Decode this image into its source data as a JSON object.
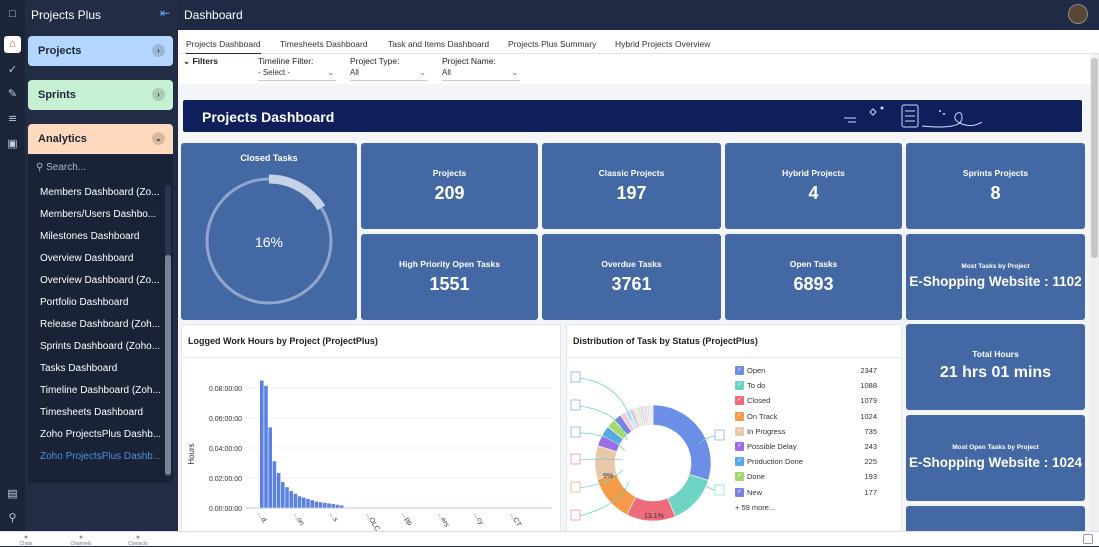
{
  "app": {
    "name": "Projects Plus",
    "header_title": "Dashboard"
  },
  "sidebar": {
    "projects_label": "Projects",
    "sprints_label": "Sprints",
    "analytics_label": "Analytics",
    "search_placeholder": "Search...",
    "dashboards": [
      "Members Dashboard (Zo...",
      "Members/Users Dashbo...",
      "Milestones Dashboard",
      "Overview Dashboard",
      "Overview Dashboard (Zo...",
      "Portfolio Dashboard",
      "Release Dashboard (Zoh...",
      "Sprints Dashboard (Zoho...",
      "Tasks Dashboard",
      "Timeline Dashboard (Zoh...",
      "Timesheets Dashboard",
      "Zoho ProjectsPlus Dashb...",
      "Zoho ProjectsPlus Dashb..."
    ]
  },
  "tabs": [
    "Projects Dashboard",
    "Timesheets Dashboard",
    "Task and Items Dashboard",
    "Projects Plus Summary",
    "Hybrid Projects Overview"
  ],
  "filters": {
    "toggle_label": "Filters",
    "timeline": {
      "label": "Timeline Filter:",
      "value": "- Select -"
    },
    "project_type": {
      "label": "Project Type:",
      "value": "All"
    },
    "project_name": {
      "label": "Project Name:",
      "value": "All"
    }
  },
  "banner": {
    "title": "Projects Dashboard"
  },
  "closed_tasks": {
    "title": "Closed Tasks",
    "value_text": "16%",
    "fraction": 0.16
  },
  "kpis": {
    "projects": {
      "label": "Projects",
      "value": "209"
    },
    "classic": {
      "label": "Classic Projects",
      "value": "197"
    },
    "hybrid": {
      "label": "Hybrid Projects",
      "value": "4"
    },
    "sprints": {
      "label": "Sprints Projects",
      "value": "8"
    },
    "high_priority": {
      "label": "High Priority Open Tasks",
      "value": "1551"
    },
    "overdue": {
      "label": "Overdue Tasks",
      "value": "3761"
    },
    "open": {
      "label": "Open Tasks",
      "value": "6893"
    },
    "most_tasks": {
      "label": "Most Tasks by Project",
      "value": "E-Shopping Website : 1102"
    },
    "total_hours": {
      "label": "Total Hours",
      "value": "21 hrs 01 mins"
    },
    "most_open": {
      "label": "Most Open Tasks by Project",
      "value": "E-Shopping Website : 1024"
    }
  },
  "logged_hours": {
    "title": "Logged Work Hours by Project (ProjectPlus)",
    "ylabel": "Hours",
    "yticks": [
      "0.08:00:00",
      "0.06:00:00",
      "0.04:00:00",
      "0.02:00:00",
      "0.00:00:00"
    ],
    "xticks": [
      "...d.",
      "...on",
      "...s",
      "...OLC",
      "...pp",
      "...ers",
      "...cy",
      "...CT"
    ],
    "bars": [
      0.98,
      0.94,
      0.62,
      0.36,
      0.27,
      0.2,
      0.16,
      0.13,
      0.11,
      0.09,
      0.08,
      0.07,
      0.06,
      0.05,
      0.045,
      0.04,
      0.035,
      0.03,
      0.025,
      0.02
    ]
  },
  "distribution": {
    "title": "Distribution of Task by Status (ProjectPlus)",
    "statuses": [
      {
        "name": "Open",
        "value": "2347",
        "color": "#6b8fe6"
      },
      {
        "name": "To do",
        "value": "1088",
        "color": "#6dd3c2"
      },
      {
        "name": "Closed",
        "value": "1079",
        "color": "#ee6b7b"
      },
      {
        "name": "On Track",
        "value": "1024",
        "color": "#f59a48"
      },
      {
        "name": "In Progress",
        "value": "735",
        "color": "#e8c8a8"
      },
      {
        "name": "Possible Delay",
        "value": "243",
        "color": "#9b6ee8"
      },
      {
        "name": "Production Done",
        "value": "225",
        "color": "#5aa8e6"
      },
      {
        "name": "Done",
        "value": "193",
        "color": "#a6d96a"
      },
      {
        "name": "New",
        "value": "177",
        "color": "#7b83e0"
      }
    ],
    "more_label": "+ 59 more...",
    "donut_label_small": "9%",
    "donut_label_large": "13.1%"
  },
  "bottom_bar": {
    "chats": "Chats",
    "channels": "Channels",
    "contacts": "Contacts"
  }
}
